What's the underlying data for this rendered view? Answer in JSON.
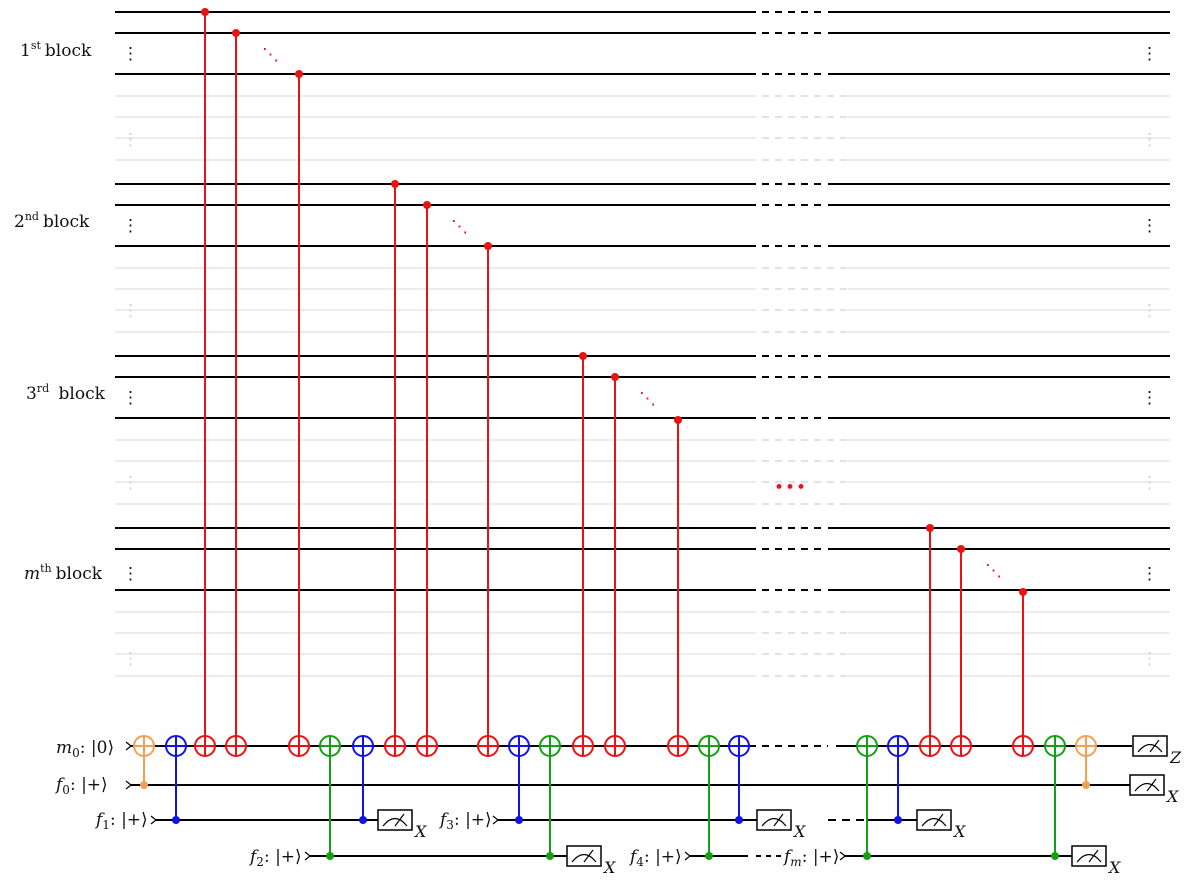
{
  "blocks": [
    {
      "prefix": "1",
      "sup": "st",
      "suffix": "block",
      "italic_prefix": false
    },
    {
      "prefix": "2",
      "sup": "nd",
      "suffix": "block",
      "italic_prefix": false
    },
    {
      "prefix": "3",
      "sup": "rd",
      "suffix": " block",
      "italic_prefix": false
    },
    {
      "prefix": "m",
      "sup": "th",
      "suffix": "block",
      "italic_prefix": true
    }
  ],
  "vdots": "⋮",
  "ddots": "⋱",
  "hdots": "•••",
  "ancilla": {
    "name": "m",
    "sub": "0",
    "state": ": |0⟩"
  },
  "flags": [
    {
      "id": "f0",
      "name": "f",
      "sub": "0",
      "state": ": |+⟩"
    },
    {
      "id": "f1",
      "name": "f",
      "sub": "1",
      "state": ": |+⟩"
    },
    {
      "id": "f2",
      "name": "f",
      "sub": "2",
      "state": ": |+⟩"
    },
    {
      "id": "f3",
      "name": "f",
      "sub": "3",
      "state": ": |+⟩"
    },
    {
      "id": "f4",
      "name": "f",
      "sub": "4",
      "state": ": |+⟩"
    },
    {
      "id": "fm",
      "name": "f",
      "sub": "m",
      "state": ": |+⟩"
    }
  ],
  "measurements": [
    {
      "target": "m0",
      "basis": "Z"
    },
    {
      "target": "f0",
      "basis": "X"
    },
    {
      "target": "f1",
      "basis": "X"
    },
    {
      "target": "f3",
      "basis": "X"
    },
    {
      "target": "f2",
      "basis": "X"
    },
    {
      "target": "fm_prev",
      "basis": "X"
    },
    {
      "target": "fm",
      "basis": "X"
    }
  ],
  "colors": {
    "wire": "#000000",
    "faint_wire": "#d9d9d9",
    "red": "#ee1111",
    "blue": "#1111ee",
    "green": "#14a014",
    "orange": "#f5a050"
  }
}
